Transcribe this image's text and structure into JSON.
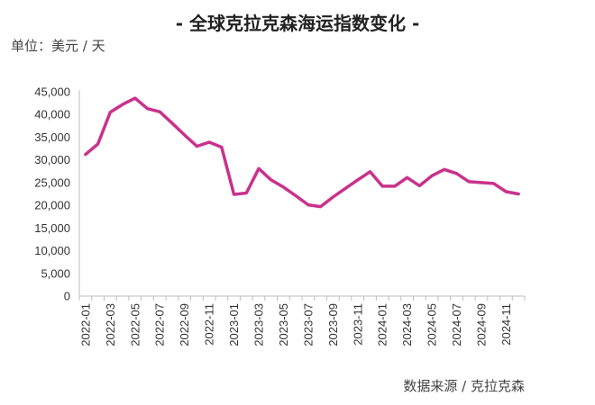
{
  "chart_data": {
    "type": "line",
    "title": "- 全球克拉克森海运指数变化 -",
    "unit_label": "单位：美元 / 天",
    "source": "数据来源 / 克拉克森",
    "ylim": [
      0,
      45000
    ],
    "y_ticks": [
      "0",
      "5,000",
      "10,000",
      "15,000",
      "20,000",
      "25,000",
      "30,000",
      "35,000",
      "40,000",
      "45,000"
    ],
    "x_tick_labels": [
      "2022-01",
      "2022-03",
      "2022-05",
      "2022-07",
      "2022-09",
      "2022-11",
      "2023-01",
      "2023-03",
      "2023-05",
      "2023-07",
      "2023-09",
      "2023-11",
      "2024-01",
      "2024-03",
      "2024-05",
      "2024-07",
      "2024-09",
      "2024-11"
    ],
    "x": [
      "2022-01",
      "2022-02",
      "2022-03",
      "2022-04",
      "2022-05",
      "2022-06",
      "2022-07",
      "2022-08",
      "2022-09",
      "2022-10",
      "2022-11",
      "2022-12",
      "2023-01",
      "2023-02",
      "2023-03",
      "2023-04",
      "2023-05",
      "2023-06",
      "2023-07",
      "2023-08",
      "2023-09",
      "2023-10",
      "2023-11",
      "2023-12",
      "2024-01",
      "2024-02",
      "2024-03",
      "2024-04",
      "2024-05",
      "2024-06",
      "2024-07",
      "2024-08",
      "2024-09",
      "2024-10",
      "2024-11",
      "2024-12"
    ],
    "series": [
      {
        "color": "#c8328c",
        "values": [
          31200,
          33500,
          40500,
          42200,
          43600,
          41300,
          40600,
          38100,
          35500,
          33000,
          33900,
          32800,
          22400,
          22700,
          28100,
          25600,
          24000,
          22100,
          20100,
          19700,
          21800,
          23700,
          25600,
          27400,
          24200,
          24200,
          26100,
          24300,
          26500,
          27900,
          27000,
          25200,
          25000,
          24800,
          23000,
          22500
        ]
      }
    ],
    "grid": false,
    "legend": "none"
  }
}
